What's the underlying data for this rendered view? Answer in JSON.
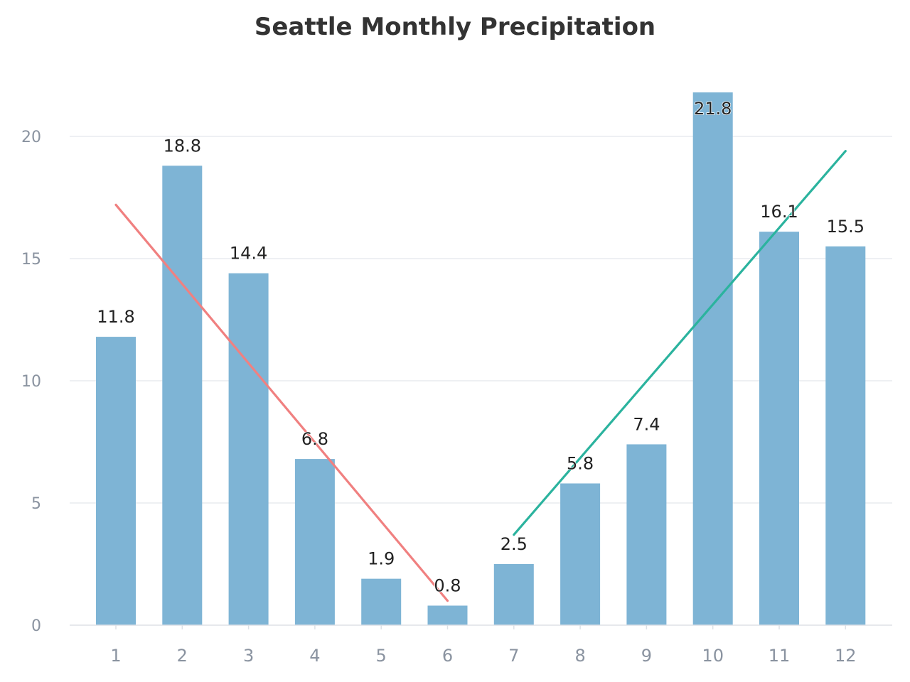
{
  "chart_data": {
    "type": "bar",
    "title": "Seattle Monthly Precipitation",
    "xlabel": "",
    "ylabel": "",
    "categories": [
      "1",
      "2",
      "3",
      "4",
      "5",
      "6",
      "7",
      "8",
      "9",
      "10",
      "11",
      "12"
    ],
    "values": [
      11.8,
      18.8,
      14.4,
      6.8,
      1.9,
      0.8,
      2.5,
      5.8,
      7.4,
      21.8,
      16.1,
      15.5
    ],
    "value_labels": [
      "11.8",
      "18.8",
      "14.4",
      "6.8",
      "1.9",
      "0.8",
      "2.5",
      "5.8",
      "7.4",
      "21.8",
      "16.1",
      "15.5"
    ],
    "ylim": [
      0,
      22
    ],
    "yticks": [
      0,
      5,
      10,
      15,
      20
    ],
    "ytick_labels": [
      "0",
      "5",
      "10",
      "15",
      "20"
    ],
    "grid": true,
    "legend": "none",
    "bar_color": "#7eb4d5",
    "trend_lines": [
      {
        "x_start": "1",
        "x_end": "6",
        "y_start": 17.2,
        "y_end": 1.0,
        "color": "#f08080"
      },
      {
        "x_start": "7",
        "x_end": "12",
        "y_start": 3.7,
        "y_end": 19.4,
        "color": "#2bb39e"
      }
    ]
  }
}
